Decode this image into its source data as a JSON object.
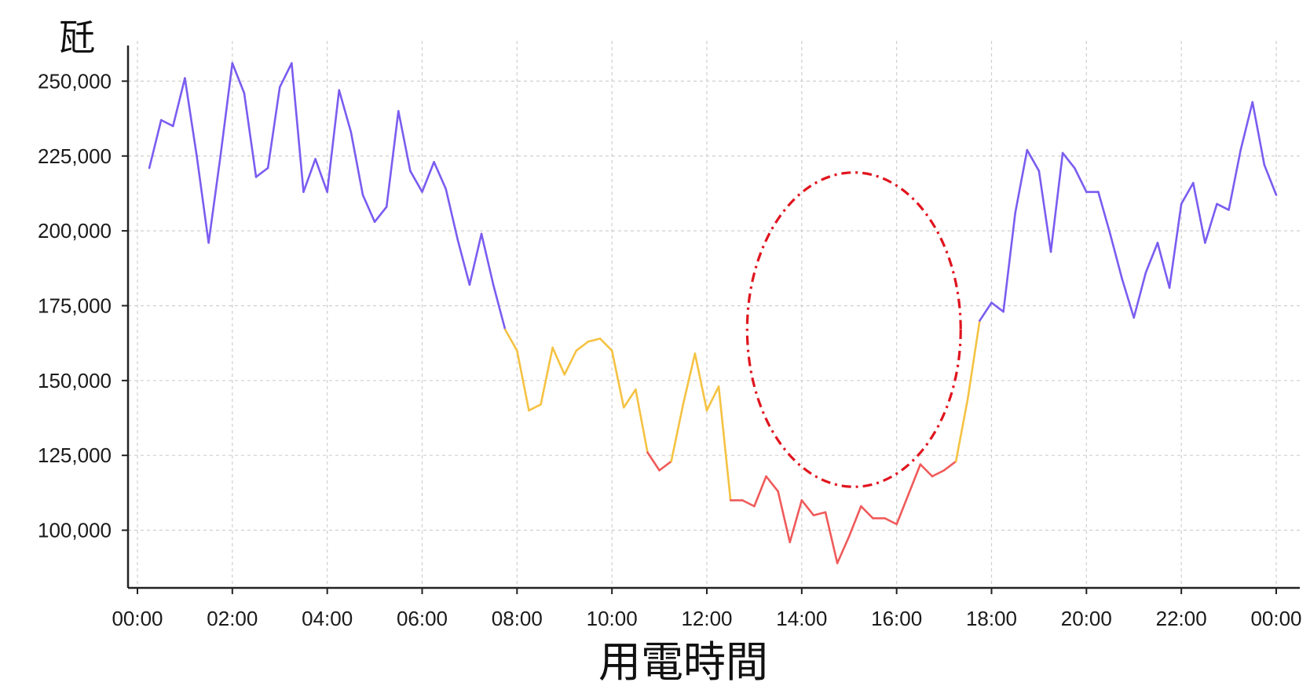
{
  "chart_data": {
    "type": "line",
    "title": "",
    "xlabel": "用電時間",
    "ylabel": "瓩",
    "x_ticks": [
      "00:00",
      "02:00",
      "04:00",
      "06:00",
      "08:00",
      "10:00",
      "12:00",
      "14:00",
      "16:00",
      "18:00",
      "20:00",
      "22:00",
      "00:00"
    ],
    "y_ticks": [
      "100,000",
      "125,000",
      "150,000",
      "175,000",
      "200,000",
      "225,000",
      "250,000"
    ],
    "y_tick_values": [
      100000,
      125000,
      150000,
      175000,
      200000,
      225000,
      250000
    ],
    "xlim_hours": [
      0,
      24
    ],
    "ylim": [
      81000,
      264000
    ],
    "grid": true,
    "grid_style": "dashed",
    "color_bands": {
      "high_color": "#7b5cf0",
      "mid_color": "#f5c242",
      "low_color": "#f05a5a",
      "high_threshold": 167000,
      "low_threshold": 126000
    },
    "annotation": {
      "shape": "ellipse",
      "style": "dash-dot",
      "color": "#e0141e",
      "center": [
        15.1,
        167000
      ],
      "radius_hours": 2.25,
      "radius_value": 52500
    },
    "series": [
      {
        "x": [
          0.25,
          0.5,
          0.75,
          1.0,
          1.25,
          1.5,
          1.75,
          2.0,
          2.25,
          2.5,
          2.75,
          3.0,
          3.25,
          3.5,
          3.75,
          4.0,
          4.25,
          4.5,
          4.75,
          5.0,
          5.25,
          5.5,
          5.75,
          6.0,
          6.25,
          6.5,
          6.75,
          7.0,
          7.25,
          7.5,
          7.75,
          8.0,
          8.25,
          8.5,
          8.75,
          9.0,
          9.25,
          9.5,
          9.75,
          10.0,
          10.25,
          10.5,
          10.75,
          11.0,
          11.25,
          11.5,
          11.75,
          12.0,
          12.25,
          12.5,
          12.75,
          13.0,
          13.25,
          13.5,
          13.75,
          14.0,
          14.25,
          14.5,
          14.75,
          15.0,
          15.25,
          15.5,
          15.75,
          16.0,
          16.25,
          16.5,
          16.75,
          17.0,
          17.25,
          17.5,
          17.75,
          18.0,
          18.25,
          18.5,
          18.75,
          19.0,
          19.25,
          19.5,
          19.75,
          20.0,
          20.25,
          20.5,
          20.75,
          21.0,
          21.25,
          21.5,
          21.75,
          22.0,
          22.25,
          22.5,
          22.75,
          23.0,
          23.25,
          23.5,
          23.75,
          24.0
        ],
        "values": [
          221000,
          237000,
          235000,
          251000,
          225000,
          196000,
          225000,
          256000,
          246000,
          218000,
          221000,
          248000,
          256000,
          213000,
          224000,
          213000,
          247000,
          233000,
          212000,
          203000,
          208000,
          240000,
          220000,
          213000,
          223000,
          214000,
          197000,
          182000,
          199000,
          182000,
          167000,
          160000,
          140000,
          142000,
          161000,
          152000,
          160000,
          163000,
          164000,
          160000,
          141000,
          147000,
          126000,
          120000,
          123000,
          142000,
          159000,
          140000,
          148000,
          110000,
          110000,
          108000,
          118000,
          113000,
          96000,
          110000,
          105000,
          106000,
          89000,
          98000,
          108000,
          104000,
          104000,
          102000,
          112000,
          122000,
          118000,
          120000,
          123000,
          144000,
          170000,
          176000,
          173000,
          206000,
          227000,
          220000,
          193000,
          226000,
          221000,
          213000,
          213000,
          199000,
          184000,
          171000,
          186000,
          196000,
          181000,
          209000,
          216000,
          196000,
          209000,
          207000,
          227000,
          243000,
          222000,
          212000
        ]
      }
    ]
  }
}
